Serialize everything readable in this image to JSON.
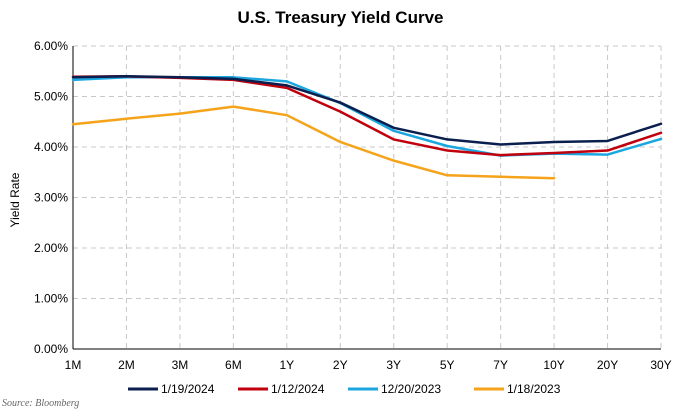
{
  "chart_data": {
    "type": "line",
    "title": "U.S. Treasury Yield Curve",
    "xlabel": "",
    "ylabel": "Yield Rate",
    "categories": [
      "1M",
      "2M",
      "3M",
      "6M",
      "1Y",
      "2Y",
      "3Y",
      "5Y",
      "7Y",
      "10Y",
      "20Y",
      "30Y"
    ],
    "ylim": [
      0,
      6
    ],
    "yticks": [
      "0.00%",
      "1.00%",
      "2.00%",
      "3.00%",
      "4.00%",
      "5.00%",
      "6.00%"
    ],
    "grid": true,
    "legend_position": "bottom",
    "series": [
      {
        "name": "1/19/2024",
        "color": "#0b1f4e",
        "values": [
          5.38,
          5.4,
          5.38,
          5.35,
          5.22,
          4.88,
          4.38,
          4.15,
          4.05,
          4.1,
          4.12,
          4.46
        ]
      },
      {
        "name": "1/12/2024",
        "color": "#c0000d",
        "values": [
          5.39,
          5.4,
          5.37,
          5.33,
          5.17,
          4.7,
          4.15,
          3.93,
          3.84,
          3.88,
          3.93,
          4.28
        ]
      },
      {
        "name": "12/20/2023",
        "color": "#1ca6e0",
        "values": [
          5.33,
          5.38,
          5.38,
          5.38,
          5.3,
          4.87,
          4.32,
          4.02,
          3.83,
          3.87,
          3.85,
          4.16
        ]
      },
      {
        "name": "1/18/2023",
        "color": "#f5a31a",
        "values": [
          4.45,
          4.56,
          4.66,
          4.8,
          4.63,
          4.1,
          3.73,
          3.44,
          3.41,
          3.38,
          null,
          null
        ]
      }
    ]
  },
  "source": "Source: Bloomberg"
}
